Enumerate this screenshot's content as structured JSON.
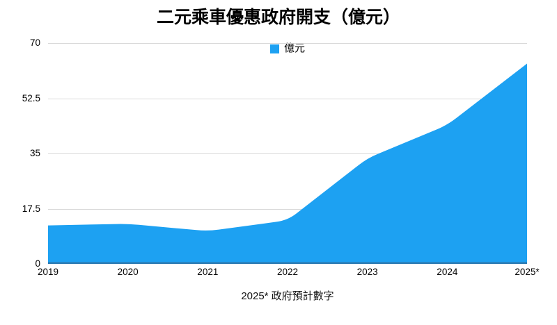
{
  "chart_data": {
    "type": "area",
    "title": "二元乘車優惠政府開支（億元）",
    "categories": [
      "2019",
      "2020",
      "2021",
      "2022",
      "2023",
      "2024",
      "2025*"
    ],
    "series": [
      {
        "name": "億元",
        "values": [
          12.2,
          12.7,
          10.4,
          13.8,
          33.5,
          44,
          63.5
        ]
      }
    ],
    "xlabel": "",
    "ylabel": "",
    "ylim": [
      0,
      70
    ],
    "yticks": [
      0,
      17.5,
      35,
      52.5,
      70
    ],
    "ytick_labels": [
      "0",
      "17.5",
      "35",
      "52.5",
      "70"
    ],
    "grid": true,
    "legend_position": "top-center",
    "footnote": "2025* 政府預計數字",
    "colors": {
      "area": "#1da1f2",
      "gridline": "#d8d8d8",
      "axis_line": "#2b7ab2",
      "text": "#000000"
    }
  }
}
